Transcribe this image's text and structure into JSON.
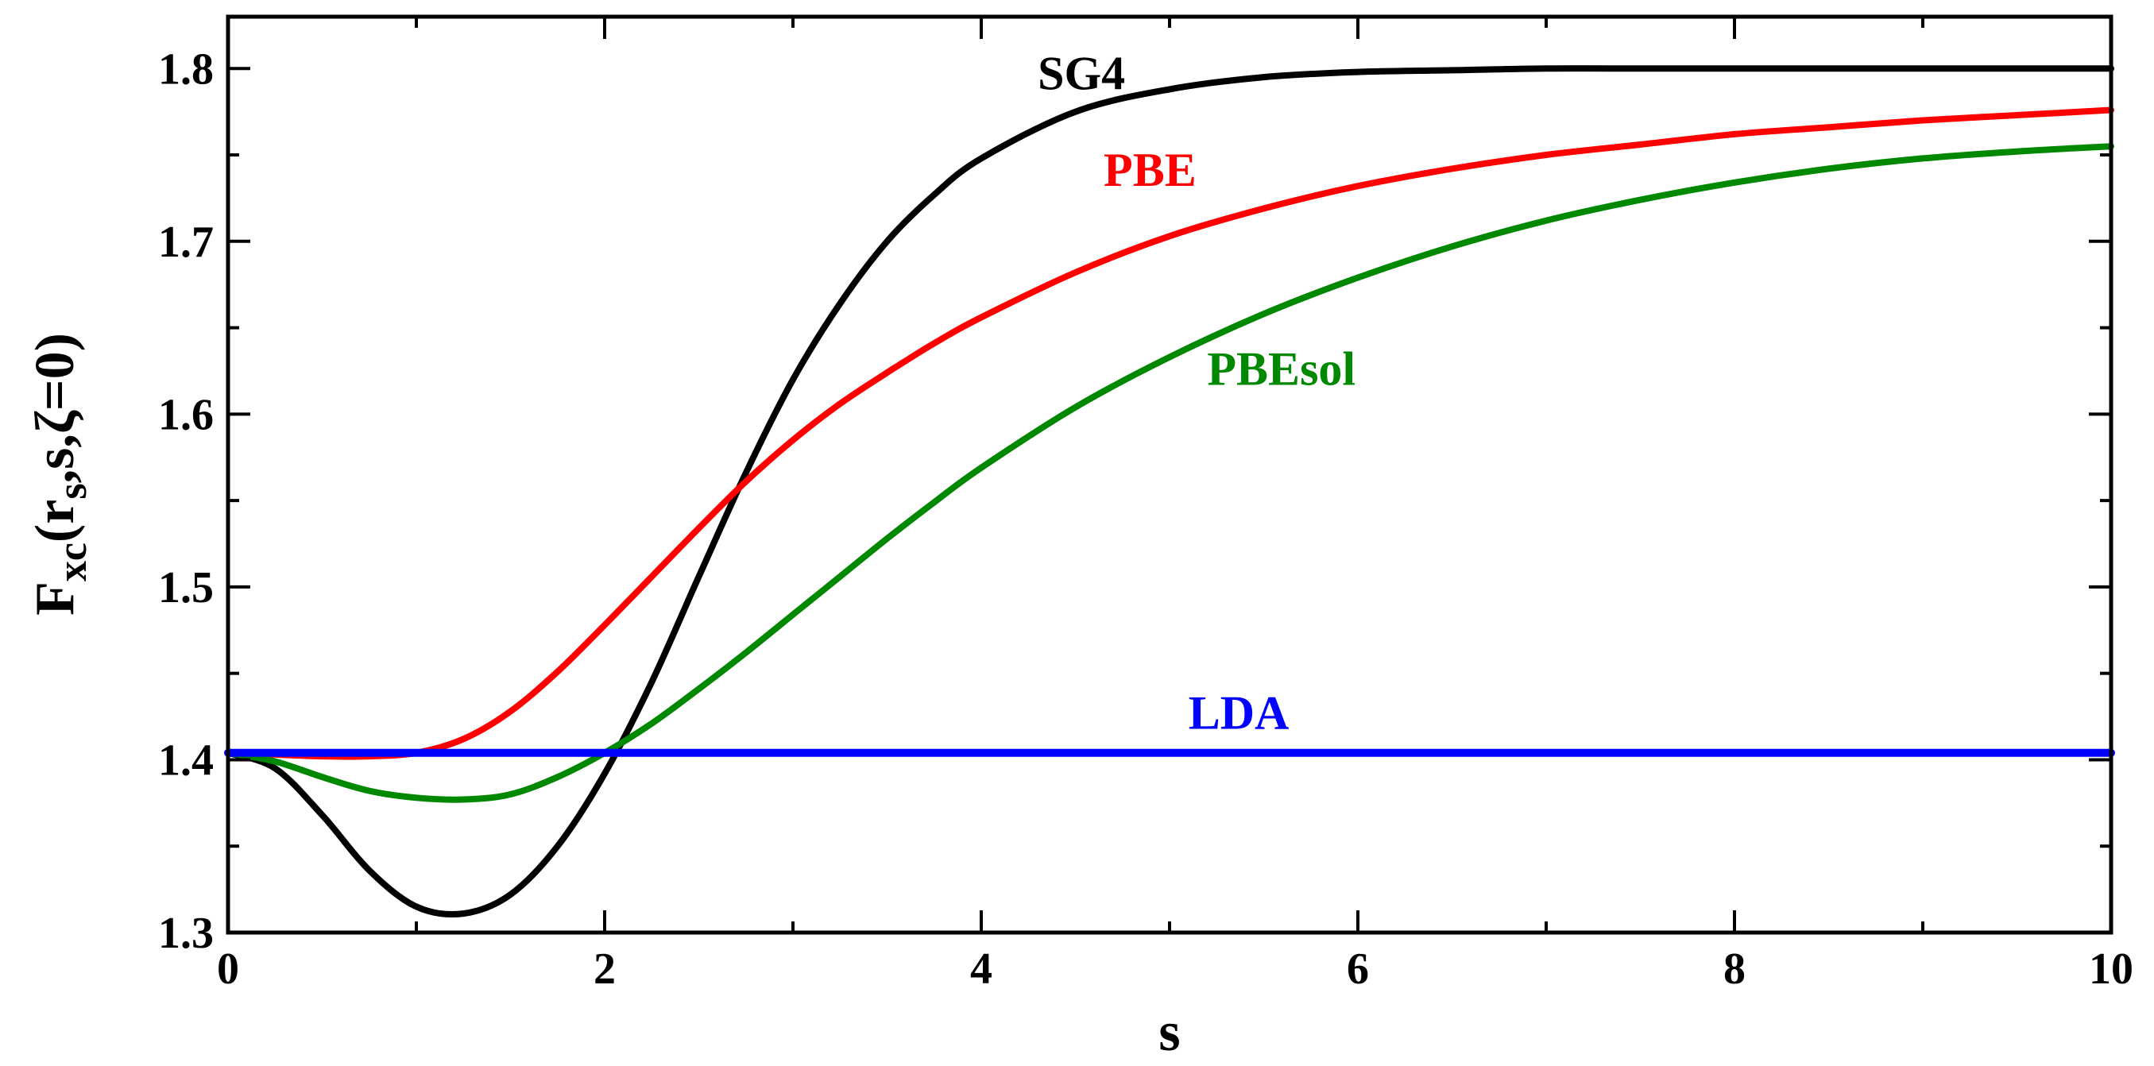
{
  "chart_data": {
    "type": "line",
    "title": "",
    "xlabel": "s",
    "ylabel": {
      "base": "F",
      "sub1": "xc",
      "open": "(r",
      "sub2": "s",
      "rest": ",s,ζ=0)"
    },
    "xlim": [
      0,
      10
    ],
    "ylim": [
      1.3,
      1.83
    ],
    "x_ticks": [
      0,
      2,
      4,
      6,
      8,
      10
    ],
    "x_tick_labels": [
      "0",
      "2",
      "4",
      "6",
      "8",
      "10"
    ],
    "y_ticks": [
      1.3,
      1.4,
      1.5,
      1.6,
      1.7,
      1.8
    ],
    "y_tick_labels": [
      "1.3",
      "1.4",
      "1.5",
      "1.6",
      "1.7",
      "1.8"
    ],
    "grid": false,
    "x": [
      0,
      0.25,
      0.5,
      0.75,
      1.0,
      1.25,
      1.5,
      1.75,
      2.0,
      2.25,
      2.5,
      2.75,
      3.0,
      3.25,
      3.5,
      3.75,
      4.0,
      4.5,
      5.0,
      5.5,
      6.0,
      6.5,
      7.0,
      7.5,
      8.0,
      8.5,
      9.0,
      9.5,
      10.0
    ],
    "series": [
      {
        "name": "SG4",
        "color": "#000000",
        "label_anchor": [
          4.3,
          1.788
        ],
        "values": [
          1.404,
          1.395,
          1.368,
          1.336,
          1.315,
          1.311,
          1.322,
          1.35,
          1.392,
          1.445,
          1.506,
          1.566,
          1.62,
          1.664,
          1.7,
          1.727,
          1.748,
          1.775,
          1.788,
          1.795,
          1.798,
          1.799,
          1.8,
          1.8,
          1.8,
          1.8,
          1.8,
          1.8,
          1.8
        ]
      },
      {
        "name": "PBE",
        "color": "#ff0000",
        "label_anchor": [
          4.65,
          1.732
        ],
        "values": [
          1.404,
          1.403,
          1.402,
          1.402,
          1.404,
          1.412,
          1.428,
          1.451,
          1.478,
          1.506,
          1.534,
          1.561,
          1.585,
          1.606,
          1.624,
          1.641,
          1.656,
          1.682,
          1.703,
          1.719,
          1.732,
          1.742,
          1.75,
          1.756,
          1.762,
          1.766,
          1.77,
          1.773,
          1.776
        ]
      },
      {
        "name": "PBEsol",
        "color": "#008800",
        "label_anchor": [
          5.2,
          1.617
        ],
        "values": [
          1.404,
          1.399,
          1.39,
          1.382,
          1.378,
          1.377,
          1.38,
          1.39,
          1.404,
          1.421,
          1.441,
          1.462,
          1.484,
          1.506,
          1.528,
          1.549,
          1.569,
          1.604,
          1.633,
          1.658,
          1.679,
          1.697,
          1.712,
          1.724,
          1.734,
          1.742,
          1.748,
          1.752,
          1.755
        ]
      },
      {
        "name": "LDA",
        "color": "#0000ff",
        "label_anchor": [
          5.1,
          1.418
        ],
        "values": [
          1.404,
          1.404,
          1.404,
          1.404,
          1.404,
          1.404,
          1.404,
          1.404,
          1.404,
          1.404,
          1.404,
          1.404,
          1.404,
          1.404,
          1.404,
          1.404,
          1.404,
          1.404,
          1.404,
          1.404,
          1.404,
          1.404,
          1.404,
          1.404,
          1.404,
          1.404,
          1.404,
          1.404,
          1.404
        ]
      }
    ]
  }
}
